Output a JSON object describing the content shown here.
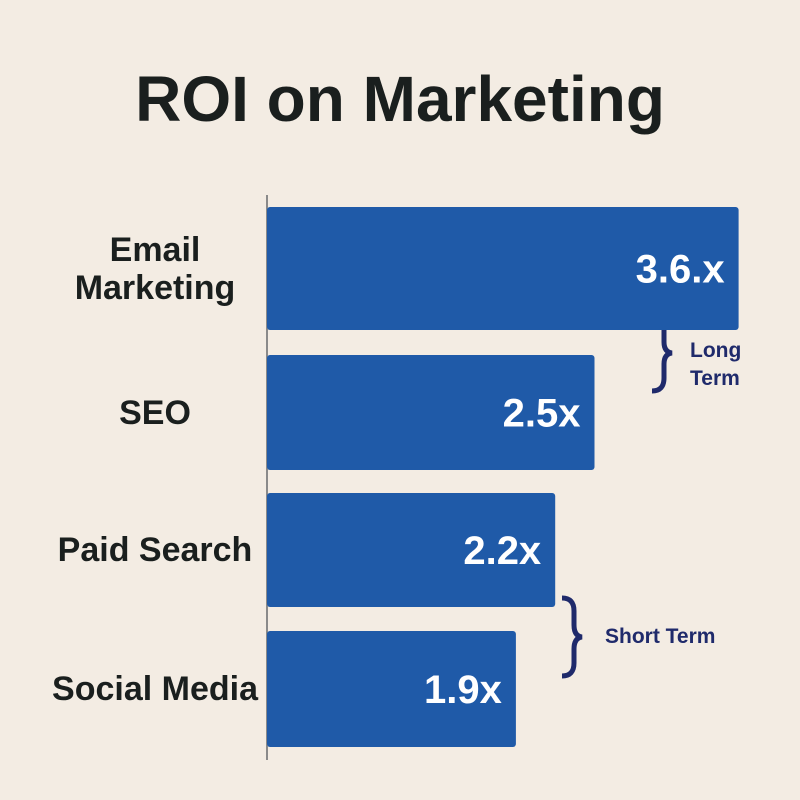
{
  "chart_data": {
    "type": "bar",
    "orientation": "horizontal",
    "title": "ROI on Marketing",
    "categories": [
      "Email Marketing",
      "SEO",
      "Paid Search",
      "Social Media"
    ],
    "values": [
      3.6,
      2.5,
      2.2,
      1.9
    ],
    "value_labels": [
      "3.6.x",
      "2.5x",
      "2.2x",
      "1.9x"
    ],
    "color": "#1f5aa8",
    "annotations": [
      "Long Term",
      "Short Term"
    ]
  }
}
